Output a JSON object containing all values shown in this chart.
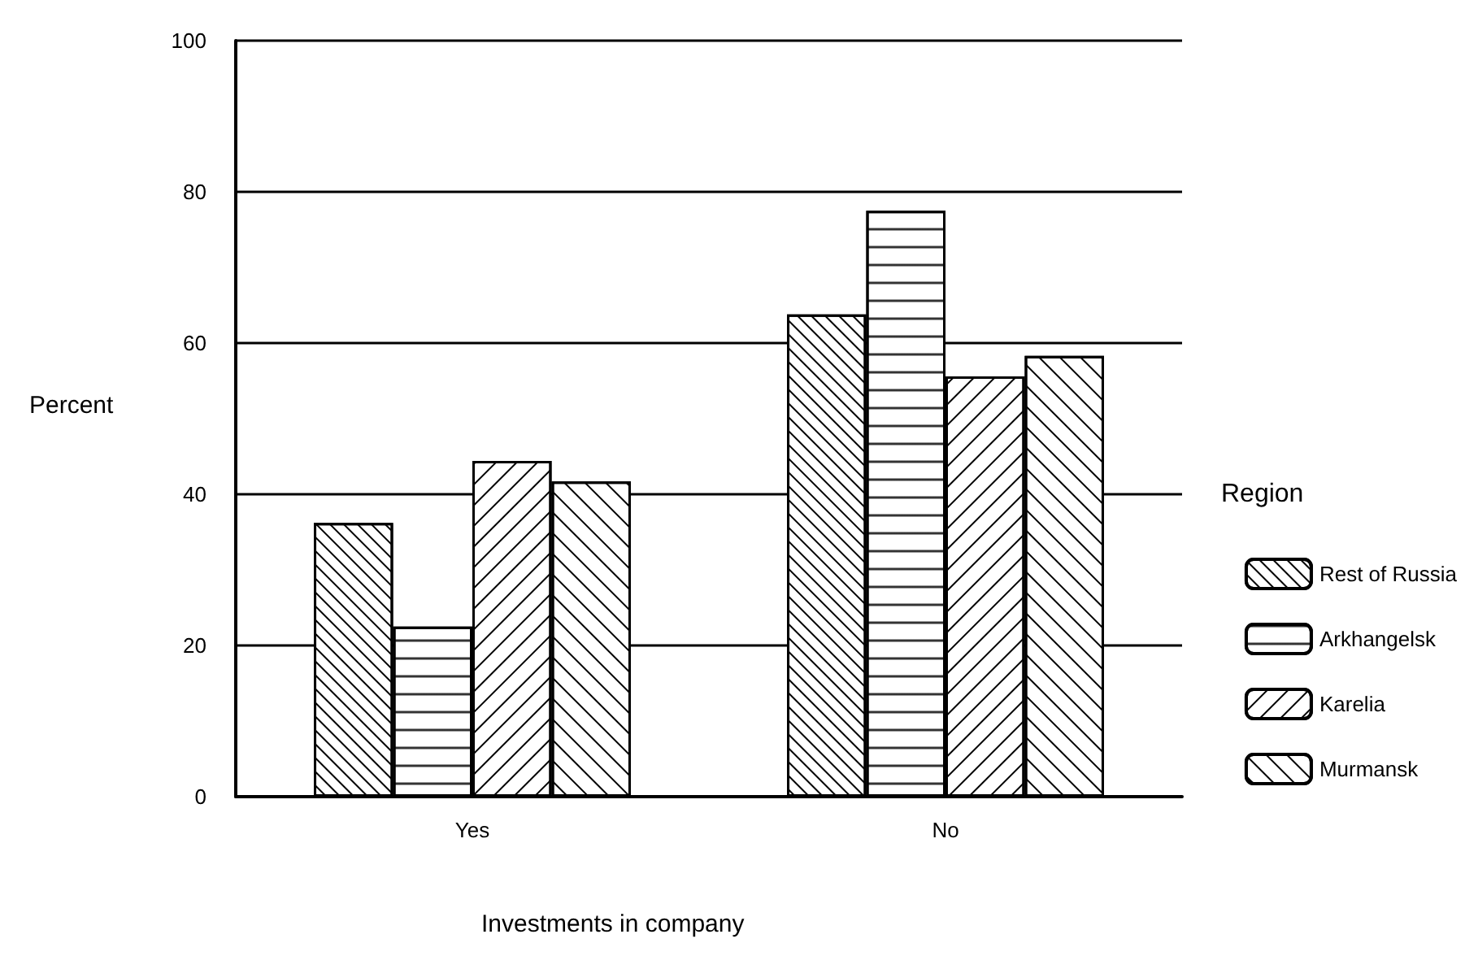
{
  "chart_data": {
    "type": "bar",
    "xlabel": "Investments in company",
    "ylabel": "Percent",
    "legend_title": "Region",
    "categories": [
      "Yes",
      "No"
    ],
    "series": [
      {
        "name": "Rest of Russia",
        "color": "#ffffff",
        "values": [
          36.2,
          63.8
        ]
      },
      {
        "name": "Arkhangelsk",
        "color": "#ffffff",
        "values": [
          22.5,
          77.5
        ]
      },
      {
        "name": "Karelia",
        "color": "#ffffff",
        "values": [
          44.4,
          55.6
        ]
      },
      {
        "name": "Murmansk",
        "color": "#ffffff",
        "values": [
          41.7,
          58.3
        ]
      }
    ],
    "ylim": [
      0,
      100
    ],
    "yticks": [
      0,
      20,
      40,
      60,
      80,
      100
    ],
    "grid": "y",
    "legend": "right"
  }
}
